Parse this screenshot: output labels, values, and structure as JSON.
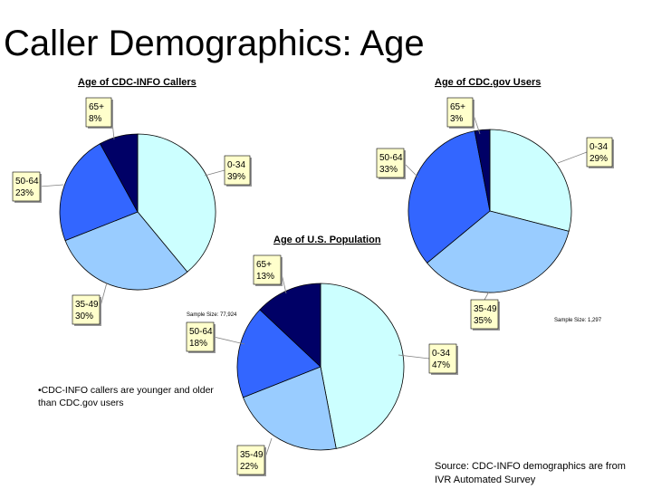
{
  "title": "Caller Demographics: Age",
  "note": "•CDC-INFO callers are younger and older than CDC.gov users",
  "source": [
    "Source: CDC-INFO demographics are from",
    "IVR Automated Survey"
  ],
  "colors": {
    "0-34": "#ccffff",
    "35-49": "#99ccff",
    "50-64": "#3366ff",
    "65+": "#000066",
    "callout_fill": "#ffffcc",
    "leader": "#808080"
  },
  "chart_data": [
    {
      "type": "pie",
      "title": "Age of CDC-INFO Callers",
      "sample_size": "Sample Size: 77,924",
      "slices": [
        {
          "label": "0-34",
          "value": 39,
          "display": "39%"
        },
        {
          "label": "35-49",
          "value": 30,
          "display": "30%"
        },
        {
          "label": "50-64",
          "value": 23,
          "display": "23%"
        },
        {
          "label": "65+",
          "value": 8,
          "display": "8%"
        }
      ]
    },
    {
      "type": "pie",
      "title": "Age of CDC.gov Users",
      "sample_size": "Sample Size: 1,297",
      "slices": [
        {
          "label": "0-34",
          "value": 29,
          "display": "29%"
        },
        {
          "label": "35-49",
          "value": 35,
          "display": "35%"
        },
        {
          "label": "50-64",
          "value": 33,
          "display": "33%"
        },
        {
          "label": "65+",
          "value": 3,
          "display": "3%"
        }
      ]
    },
    {
      "type": "pie",
      "title": "Age of U.S. Population",
      "sample_size": "",
      "slices": [
        {
          "label": "0-34",
          "value": 47,
          "display": "47%"
        },
        {
          "label": "35-49",
          "value": 22,
          "display": "22%"
        },
        {
          "label": "50-64",
          "value": 18,
          "display": "18%"
        },
        {
          "label": "65+",
          "value": 13,
          "display": "13%"
        }
      ]
    }
  ]
}
